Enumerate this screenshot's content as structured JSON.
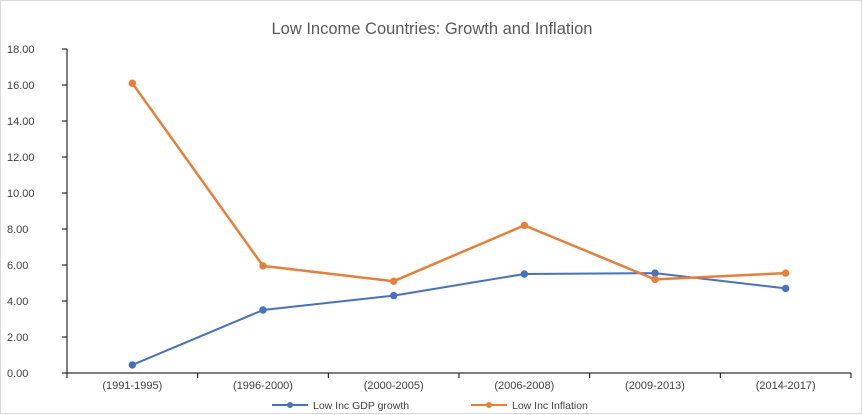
{
  "chart_data": {
    "type": "line",
    "title": "Low Income Countries: Growth and Inflation",
    "xlabel": "",
    "ylabel": "",
    "categories": [
      "(1991-1995)",
      "(1996-2000)",
      "(2000-2005)",
      "(2006-2008)",
      "(2009-2013)",
      "(2014-2017)"
    ],
    "ylim": [
      0,
      18
    ],
    "yticks": [
      "0.00",
      "2.00",
      "4.00",
      "6.00",
      "8.00",
      "10.00",
      "12.00",
      "14.00",
      "16.00",
      "18.00"
    ],
    "grid": false,
    "legend_position": "bottom",
    "series": [
      {
        "name": "Low Inc GDP growth",
        "color": "#4472c4",
        "values": [
          0.45,
          3.5,
          4.3,
          5.5,
          5.55,
          4.7
        ]
      },
      {
        "name": "Low Inc Inflation",
        "color": "#ed7d31",
        "values": [
          16.1,
          5.95,
          5.1,
          8.2,
          5.2,
          5.55
        ]
      }
    ]
  }
}
